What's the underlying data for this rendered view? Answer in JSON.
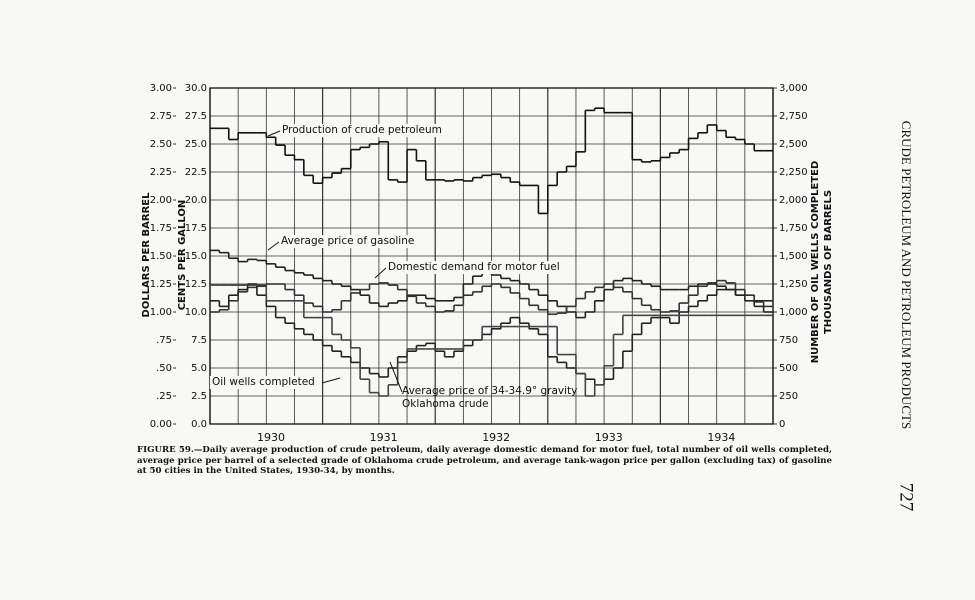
{
  "running_head": "CRUDE PETROLEUM AND PETROLEUM PRODUCTS",
  "page_number": "727",
  "chart_data": {
    "type": "line",
    "figure_label": "FIGURE 59.—",
    "title": "Daily average production of crude petroleum, daily average domestic demand for motor fuel, total number of oil wells completed, average price per barrel of a selected grade of Oklahoma crude petroleum, and average tank-wagon price per gallon (excluding tax) of gasoline at 50 cities in the United States, 1930-34, by months.",
    "y3_label": "DOLLARS PER BARREL",
    "y_label": "CENTS PER GALLON",
    "y2_label": "NUMBER OF OIL WELLS COMPLETED",
    "y2_label_2": "THOUSANDS OF BARRELS",
    "categories": [
      null,
      null,
      null,
      null,
      null,
      null,
      "1930",
      null,
      null,
      null,
      null,
      null,
      null,
      null,
      null,
      null,
      null,
      null,
      "1931",
      null,
      null,
      null,
      null,
      null,
      null,
      null,
      null,
      null,
      null,
      null,
      "1932",
      null,
      null,
      null,
      null,
      null,
      null,
      null,
      null,
      null,
      null,
      null,
      "1933",
      null,
      null,
      null,
      null,
      null,
      null,
      null,
      null,
      null,
      null,
      null,
      "1934",
      null,
      null,
      null,
      null,
      null
    ],
    "ylim": [
      0,
      30
    ],
    "yticks": [
      {
        "value": 0,
        "label": "0.0"
      },
      2.5,
      {
        "value": 5,
        "label": "5.0"
      },
      7.5,
      {
        "value": 10,
        "label": "10.0"
      },
      12.5,
      {
        "value": 15,
        "label": "15.0"
      },
      17.5,
      {
        "value": 20,
        "label": "20.0"
      },
      22.5,
      {
        "value": 25,
        "label": "25.0"
      },
      27.5,
      {
        "value": 30,
        "label": "30.0"
      }
    ],
    "y2lim": [
      0,
      3000
    ],
    "y2ticks": [
      0,
      250,
      500,
      750,
      {
        "value": 1000,
        "label": "1,000"
      },
      {
        "value": 1250,
        "label": "1,250"
      },
      {
        "value": 1500,
        "label": "1,500"
      },
      {
        "value": 1750,
        "label": "1,750"
      },
      {
        "value": 2000,
        "label": "2,000"
      },
      {
        "value": 2250,
        "label": "2,250"
      },
      {
        "value": 2500,
        "label": "2,500"
      },
      {
        "value": 2750,
        "label": "2,750"
      },
      {
        "value": 3000,
        "label": "3,000"
      }
    ],
    "y3lim": [
      0,
      3
    ],
    "y3ticks": [
      {
        "value": 0,
        "label": "0.00"
      },
      {
        "value": 0.25,
        "label": ".25"
      },
      {
        "value": 0.5,
        "label": ".50"
      },
      {
        "value": 0.75,
        "label": ".75"
      },
      {
        "value": 1,
        "label": "1.00"
      },
      1.25,
      {
        "value": 1.5,
        "label": "1.50"
      },
      1.75,
      {
        "value": 2,
        "label": "2.00"
      },
      2.25,
      {
        "value": 2.5,
        "label": "2.50"
      },
      2.75,
      {
        "value": 3,
        "label": "3.00"
      }
    ],
    "grid": true,
    "series": [
      {
        "name": "Production of crude petroleum",
        "axis": "y2",
        "color": "#111111",
        "values": [
          2640,
          2640,
          2540,
          2600,
          2600,
          2600,
          2560,
          2490,
          2400,
          2360,
          2220,
          2150,
          2200,
          2240,
          2280,
          2450,
          2470,
          2500,
          2520,
          2180,
          2160,
          2450,
          2350,
          2180,
          2180,
          2170,
          2180,
          2170,
          2200,
          2220,
          2230,
          2200,
          2160,
          2130,
          2130,
          1880,
          2130,
          2250,
          2300,
          2430,
          2800,
          2820,
          2780,
          2780,
          2780,
          2360,
          2340,
          2350,
          2380,
          2420,
          2450,
          2550,
          2600,
          2670,
          2620,
          2560,
          2540,
          2500,
          2440,
          2440
        ]
      },
      {
        "name": "Average price of gasoline",
        "axis": "y",
        "color": "#222222",
        "values": [
          15.5,
          15.3,
          14.8,
          14.5,
          14.7,
          14.6,
          14.3,
          14.0,
          13.7,
          13.5,
          13.3,
          13.0,
          12.8,
          12.5,
          12.3,
          12.0,
          11.5,
          10.8,
          10.5,
          10.8,
          11.0,
          11.5,
          11.5,
          11.2,
          11.0,
          11.0,
          11.3,
          12.5,
          13.2,
          13.5,
          13.3,
          13.0,
          12.8,
          12.5,
          12.0,
          11.5,
          11.0,
          10.5,
          10.0,
          9.5,
          10.0,
          11.0,
          12.0,
          12.8,
          13.0,
          12.8,
          12.5,
          12.3,
          12.0,
          12.0,
          12.0,
          12.3,
          12.5,
          12.5,
          12.3,
          12.0,
          11.5,
          11.5,
          11.0,
          11.0
        ]
      },
      {
        "name": "Domestic demand for motor fuel",
        "axis": "y2",
        "color": "#333333",
        "values": [
          1000,
          1020,
          1100,
          1180,
          1220,
          1230,
          1250,
          1250,
          1200,
          1150,
          1080,
          1050,
          1000,
          1020,
          1100,
          1170,
          1200,
          1250,
          1260,
          1240,
          1200,
          1140,
          1080,
          1050,
          1000,
          1010,
          1060,
          1150,
          1180,
          1230,
          1250,
          1220,
          1170,
          1120,
          1060,
          1020,
          980,
          990,
          1050,
          1120,
          1180,
          1220,
          1250,
          1220,
          1180,
          1120,
          1060,
          1020,
          1000,
          1010,
          1080,
          1150,
          1230,
          1260,
          1280,
          1260,
          1200,
          1150,
          1090,
          1050
        ]
      },
      {
        "name": "Oil wells completed",
        "axis": "y2",
        "color": "#222222",
        "values": [
          1100,
          1050,
          1150,
          1200,
          1250,
          1150,
          1050,
          950,
          900,
          850,
          800,
          750,
          700,
          650,
          600,
          550,
          500,
          450,
          420,
          500,
          600,
          650,
          700,
          720,
          650,
          600,
          650,
          700,
          750,
          800,
          850,
          900,
          950,
          900,
          850,
          800,
          600,
          550,
          500,
          450,
          400,
          350,
          400,
          500,
          650,
          800,
          900,
          950,
          950,
          900,
          1000,
          1050,
          1100,
          1150,
          1200,
          1200,
          1150,
          1100,
          1050,
          1000
        ]
      },
      {
        "name": "Average price of 34-34.9° gravity Oklahoma crude",
        "axis": "y3",
        "color": "#444444",
        "values": [
          1.24,
          1.24,
          1.24,
          1.24,
          1.24,
          1.24,
          1.1,
          1.1,
          1.1,
          1.1,
          0.95,
          0.95,
          0.95,
          0.8,
          0.75,
          0.68,
          0.4,
          0.28,
          0.25,
          0.35,
          0.55,
          0.67,
          0.67,
          0.67,
          0.67,
          0.67,
          0.67,
          0.75,
          0.75,
          0.87,
          0.87,
          0.87,
          0.87,
          0.87,
          0.87,
          0.87,
          0.87,
          0.62,
          0.62,
          0.45,
          0.25,
          0.35,
          0.52,
          0.8,
          0.97,
          0.97,
          0.97,
          0.97,
          0.97,
          0.97,
          0.97,
          0.97,
          0.97,
          0.97,
          0.97,
          0.97,
          0.97,
          0.97,
          0.97,
          0.97
        ]
      }
    ]
  }
}
